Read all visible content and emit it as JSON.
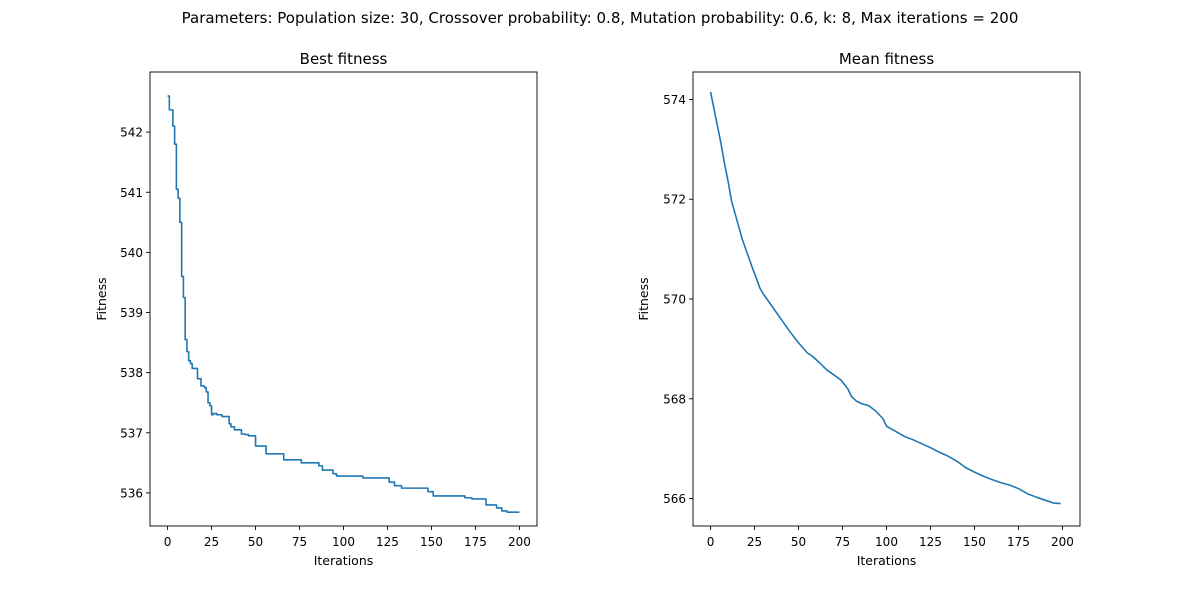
{
  "suptitle": "Parameters: Population size: 30, Crossover probability: 0.8, Mutation probability: 0.6, k: 8, Max iterations = 200",
  "colors": {
    "line": "#1f77b4",
    "axes": "#000000",
    "background": "#ffffff"
  },
  "chart_data": [
    {
      "type": "line",
      "title": "Best fitness",
      "xlabel": "Iterations",
      "ylabel": "Fitness",
      "xlim": [
        -10,
        210
      ],
      "ylim": [
        535.45,
        543.0
      ],
      "xticks": [
        0,
        25,
        50,
        75,
        100,
        125,
        150,
        175,
        200
      ],
      "yticks": [
        536,
        537,
        538,
        539,
        540,
        541,
        542
      ],
      "grid": false,
      "series": [
        {
          "x": [
            0,
            1,
            2,
            3,
            4,
            5,
            6,
            7,
            8,
            9,
            10,
            11,
            12,
            13,
            14,
            15,
            17,
            18,
            19,
            21,
            22,
            23,
            24,
            25,
            26,
            28,
            31,
            33,
            35,
            36,
            38,
            40,
            42,
            44,
            46,
            48,
            50,
            52,
            54,
            56,
            66,
            76,
            86,
            88,
            94,
            96,
            111,
            112,
            126,
            129,
            133,
            148,
            151,
            169,
            173,
            181,
            187,
            190,
            193,
            200
          ],
          "y": [
            542.6,
            542.37,
            542.37,
            542.1,
            541.8,
            541.05,
            540.9,
            540.5,
            539.6,
            539.25,
            538.55,
            538.35,
            538.2,
            538.15,
            538.07,
            538.07,
            537.9,
            537.9,
            537.78,
            537.75,
            537.68,
            537.5,
            537.45,
            537.3,
            537.32,
            537.3,
            537.27,
            537.27,
            537.15,
            537.1,
            537.05,
            537.05,
            536.98,
            536.97,
            536.95,
            536.95,
            536.78,
            536.78,
            536.78,
            536.65,
            536.55,
            536.5,
            536.45,
            536.38,
            536.32,
            536.28,
            536.25,
            536.25,
            536.18,
            536.12,
            536.08,
            536.02,
            535.95,
            535.92,
            535.9,
            535.8,
            535.75,
            535.7,
            535.68,
            535.68
          ],
          "step": "post"
        }
      ]
    },
    {
      "type": "line",
      "title": "Mean fitness",
      "xlabel": "Iterations",
      "ylabel": "Fitness",
      "xlim": [
        -10,
        210
      ],
      "ylim": [
        565.45,
        574.55
      ],
      "xticks": [
        0,
        25,
        50,
        75,
        100,
        125,
        150,
        175,
        200
      ],
      "yticks": [
        566,
        568,
        570,
        572,
        574
      ],
      "grid": false,
      "series": [
        {
          "x": [
            0,
            2,
            4,
            6,
            8,
            10,
            12,
            14,
            16,
            18,
            20,
            22,
            24,
            26,
            28,
            30,
            33,
            36,
            40,
            45,
            50,
            55,
            58,
            62,
            66,
            70,
            74,
            78,
            80,
            83,
            86,
            90,
            94,
            98,
            100,
            105,
            110,
            115,
            120,
            125,
            130,
            135,
            140,
            145,
            150,
            155,
            160,
            165,
            170,
            175,
            180,
            185,
            190,
            195,
            199
          ],
          "y": [
            574.15,
            573.8,
            573.45,
            573.1,
            572.7,
            572.35,
            571.95,
            571.7,
            571.45,
            571.2,
            571.0,
            570.8,
            570.6,
            570.42,
            570.22,
            570.1,
            569.95,
            569.8,
            569.6,
            569.35,
            569.12,
            568.92,
            568.85,
            568.72,
            568.58,
            568.48,
            568.38,
            568.2,
            568.05,
            567.95,
            567.9,
            567.86,
            567.75,
            567.6,
            567.45,
            567.35,
            567.25,
            567.18,
            567.1,
            567.02,
            566.93,
            566.85,
            566.75,
            566.62,
            566.53,
            566.45,
            566.38,
            566.32,
            566.27,
            566.2,
            566.1,
            566.03,
            565.97,
            565.91,
            565.9
          ],
          "step": null
        }
      ]
    }
  ]
}
